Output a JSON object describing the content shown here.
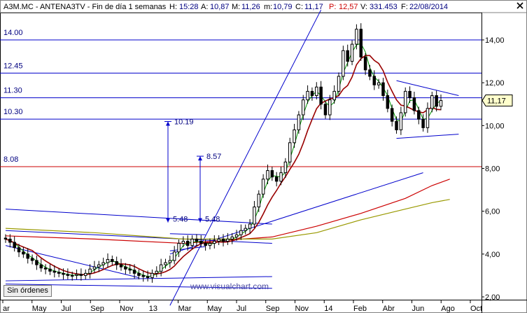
{
  "header": {
    "symbol": "A3M.MC - ANTENA3TV - Fin de día 1 semanas",
    "h_label": "H:",
    "h_value": "15:28",
    "a_label": "A:",
    "a_value": "10,87",
    "m_label": "M:",
    "m_value": "11,26",
    "mn_label": "m:",
    "mn_value": "10,79",
    "c_label": "C:",
    "c_value": "11,17",
    "p_label": "P:",
    "p_value": "12,57",
    "v_label": "V:",
    "v_value": "331.453",
    "f_label": "F:",
    "f_value": "22/08/2014",
    "close_icon": "close-x-icon"
  },
  "buttons": {
    "sin_ordenes": "Sin órdenes"
  },
  "watermark": "www.visualchart.com",
  "colors": {
    "candle": "#000000",
    "level_lines": "#0000cc",
    "support_line": "#cc0000",
    "ma_short": "#009900",
    "ma_mid": "#990000",
    "ma_long_red": "#cc0000",
    "ma_long_olive": "#999900",
    "trendlines": "#0000cc",
    "price_marker": "#ffffcc"
  },
  "chart_data": {
    "type": "candlestick",
    "x_tick_labels": [
      "ar",
      "May",
      "Jul",
      "Sep",
      "Nov",
      "13",
      "Mar",
      "May",
      "Jul",
      "Sep",
      "Nov",
      "14",
      "Feb",
      "Abr",
      "Jun",
      "Ago",
      "Oct"
    ],
    "y_tick_labels": [
      "2,00",
      "4,00",
      "6,00",
      "8,00",
      "10,00",
      "12,00",
      "14,00"
    ],
    "ylim": [
      2,
      15.4
    ],
    "current_price_label": "11,17",
    "current_price": 11.17,
    "horizontal_levels": [
      {
        "label": "14.00",
        "value": 14.0,
        "color": "#0000cc"
      },
      {
        "label": "12.45",
        "value": 12.45,
        "color": "#0000cc"
      },
      {
        "label": "11.30",
        "value": 11.3,
        "color": "#0000cc"
      },
      {
        "label": "10.30",
        "value": 10.3,
        "color": "#0000cc"
      },
      {
        "label": "8.08",
        "value": 8.08,
        "color": "#cc0000"
      }
    ],
    "target_annotations": [
      {
        "label": "10.19",
        "value": 10.19,
        "base_label": "5.48",
        "base": 5.48
      },
      {
        "label": "8.57",
        "value": 8.57,
        "base_label": "5.48",
        "base": 5.48
      }
    ],
    "closes": [
      4.7,
      4.55,
      4.3,
      4.1,
      4.0,
      3.8,
      3.7,
      3.5,
      3.35,
      3.3,
      3.2,
      3.15,
      3.1,
      3.05,
      3.0,
      3.0,
      3.05,
      3.0,
      3.1,
      3.3,
      3.4,
      3.5,
      3.6,
      3.75,
      3.65,
      3.5,
      3.4,
      3.3,
      3.25,
      3.1,
      3.0,
      2.95,
      2.9,
      3.1,
      3.2,
      3.5,
      3.6,
      3.7,
      4.1,
      4.5,
      4.6,
      4.4,
      4.7,
      4.6,
      4.5,
      4.4,
      4.5,
      4.6,
      4.7,
      4.6,
      4.7,
      4.8,
      4.9,
      5.1,
      5.2,
      5.4,
      6.2,
      6.8,
      7.5,
      7.9,
      7.6,
      7.4,
      7.8,
      8.3,
      9.2,
      9.8,
      10.5,
      11.2,
      11.6,
      11.4,
      11.8,
      11.0,
      10.5,
      11.2,
      11.6,
      12.3,
      13.5,
      13.0,
      13.8,
      14.5,
      13.2,
      12.6,
      12.3,
      11.9,
      12.0,
      11.4,
      10.8,
      10.2,
      9.8,
      10.6,
      11.6,
      11.3,
      10.7,
      10.3,
      9.9,
      10.8,
      11.4,
      10.9,
      11.17
    ],
    "moving_averages": [
      {
        "name": "ma_short",
        "color": "#009900"
      },
      {
        "name": "ma_mid",
        "color": "#990000"
      }
    ],
    "long_trend_lines": [
      {
        "name": "ma_long_red",
        "color": "#cc0000",
        "points": [
          [
            0,
            4.85
          ],
          [
            20,
            4.7
          ],
          [
            40,
            4.5
          ],
          [
            60,
            4.8
          ],
          [
            70,
            5.3
          ],
          [
            80,
            5.9
          ],
          [
            90,
            6.6
          ],
          [
            96,
            7.2
          ],
          [
            100,
            7.5
          ]
        ]
      },
      {
        "name": "ma_long_olive",
        "color": "#999900",
        "points": [
          [
            0,
            5.2
          ],
          [
            20,
            5.0
          ],
          [
            40,
            4.7
          ],
          [
            60,
            4.7
          ],
          [
            70,
            5.0
          ],
          [
            80,
            5.6
          ],
          [
            90,
            6.1
          ],
          [
            96,
            6.4
          ],
          [
            100,
            6.55
          ]
        ]
      }
    ],
    "trendlines": [
      {
        "points": [
          [
            0,
            5.1
          ],
          [
            60,
            4.5
          ]
        ]
      },
      {
        "points": [
          [
            0,
            4.4
          ],
          [
            30,
            2.9
          ]
        ]
      },
      {
        "points": [
          [
            0,
            2.6
          ],
          [
            60,
            2.4
          ]
        ]
      },
      {
        "points": [
          [
            0,
            2.75
          ],
          [
            60,
            2.95
          ]
        ]
      },
      {
        "points": [
          [
            0,
            6.1
          ],
          [
            60,
            5.4
          ]
        ]
      },
      {
        "points": [
          [
            37,
            4.0
          ],
          [
            94,
            7.8
          ]
        ]
      },
      {
        "points": [
          [
            37,
            1.6
          ],
          [
            71,
            15.4
          ]
        ]
      },
      {
        "points": [
          [
            88,
            9.4
          ],
          [
            102,
            9.6
          ]
        ]
      },
      {
        "points": [
          [
            88,
            12.1
          ],
          [
            102,
            11.4
          ]
        ]
      },
      {
        "points": [
          [
            37,
            4.95
          ],
          [
            45,
            4.9
          ]
        ]
      },
      {
        "points": [
          [
            37,
            4.15
          ],
          [
            45,
            4.35
          ]
        ]
      }
    ]
  }
}
